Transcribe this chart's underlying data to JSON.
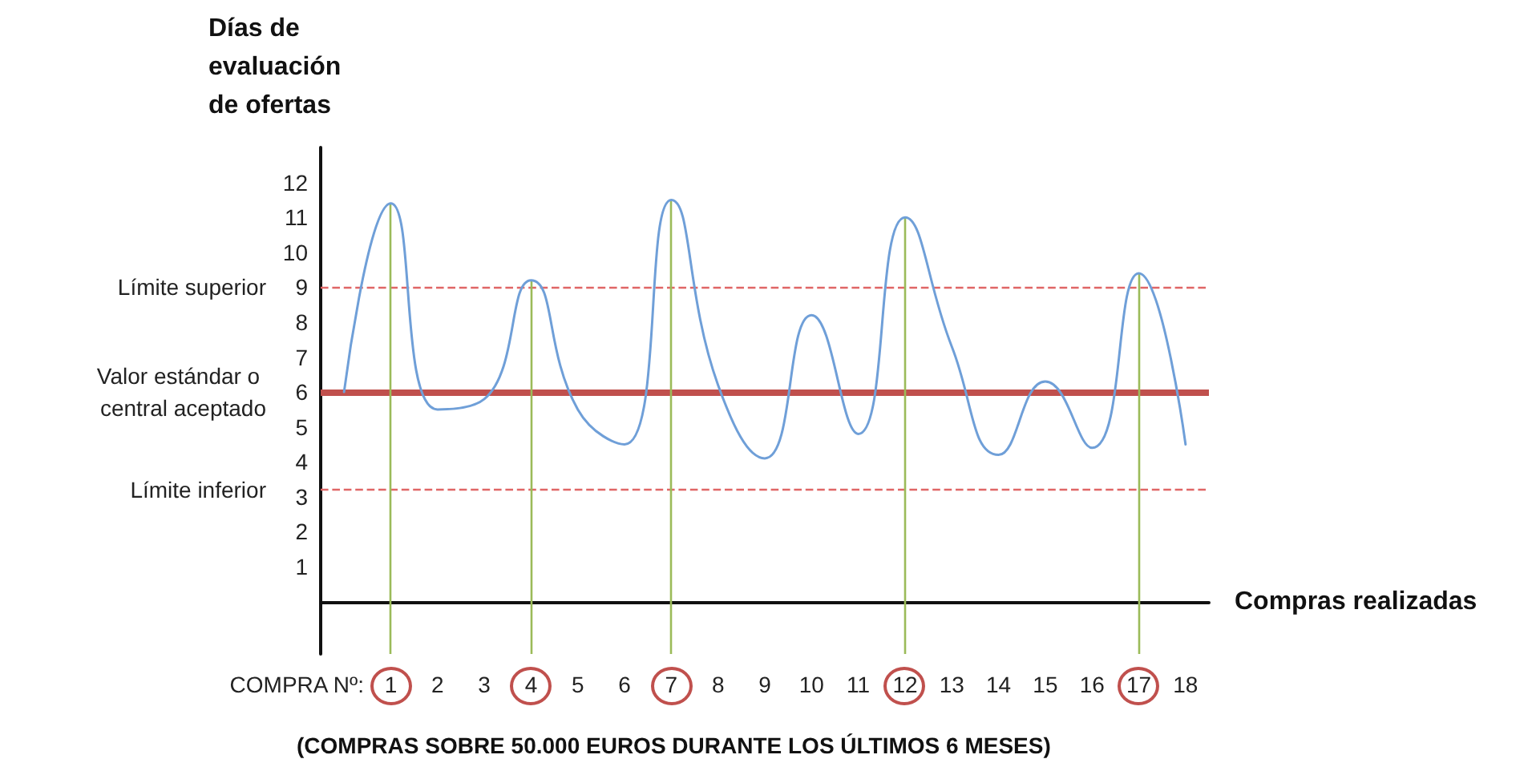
{
  "chart_data": {
    "type": "line",
    "ylabel": "Días de evaluación de ofertas",
    "xlabel": "Compras realizadas",
    "annotations": [
      "COMPRA Nº:",
      "(COMPRAS SOBRE 50.000 EUROS DURANTE LOS ÚLTIMOS 6 MESES)"
    ],
    "categories": [
      null,
      "1",
      "2",
      "3",
      "4",
      "5",
      "6",
      "7",
      "8",
      "9",
      "10",
      "11",
      "12",
      "13",
      "14",
      "15",
      "16",
      "17",
      "18"
    ],
    "series": [
      {
        "color": "#6f9fd8",
        "values": [
          6.0,
          11.4,
          5.5,
          5.8,
          9.2,
          5.5,
          4.5,
          11.5,
          6.2,
          4.1,
          8.2,
          4.8,
          11.0,
          7.3,
          4.2,
          6.3,
          4.4,
          9.4,
          4.5
        ]
      }
    ],
    "ylim": [
      -1.5,
      13
    ],
    "yticks": [
      1,
      2,
      3,
      4,
      5,
      6,
      7,
      8,
      9,
      10,
      11,
      12
    ],
    "marker": "none",
    "line_style": "solid",
    "ref_lines": [
      {
        "axis": "y",
        "value": 9,
        "label": "Límite superior",
        "color": "#e06666",
        "line_style": "dashed"
      },
      {
        "axis": "y",
        "value": 6,
        "label": "Valor estándar o central aceptado",
        "color": "#c0504d",
        "line_style": "solid"
      },
      {
        "axis": "y",
        "value": 3.2,
        "label": "Límite inferior",
        "color": "#e06666",
        "line_style": "dashed"
      },
      {
        "axis": "x",
        "value": "1",
        "label": null,
        "color": "#9bbb59",
        "line_style": "solid"
      },
      {
        "axis": "x",
        "value": "4",
        "label": null,
        "color": "#9bbb59",
        "line_style": "solid"
      },
      {
        "axis": "x",
        "value": "7",
        "label": null,
        "color": "#9bbb59",
        "line_style": "solid"
      },
      {
        "axis": "x",
        "value": "12",
        "label": null,
        "color": "#9bbb59",
        "line_style": "solid"
      },
      {
        "axis": "x",
        "value": "17",
        "label": null,
        "color": "#9bbb59",
        "line_style": "solid"
      }
    ]
  }
}
